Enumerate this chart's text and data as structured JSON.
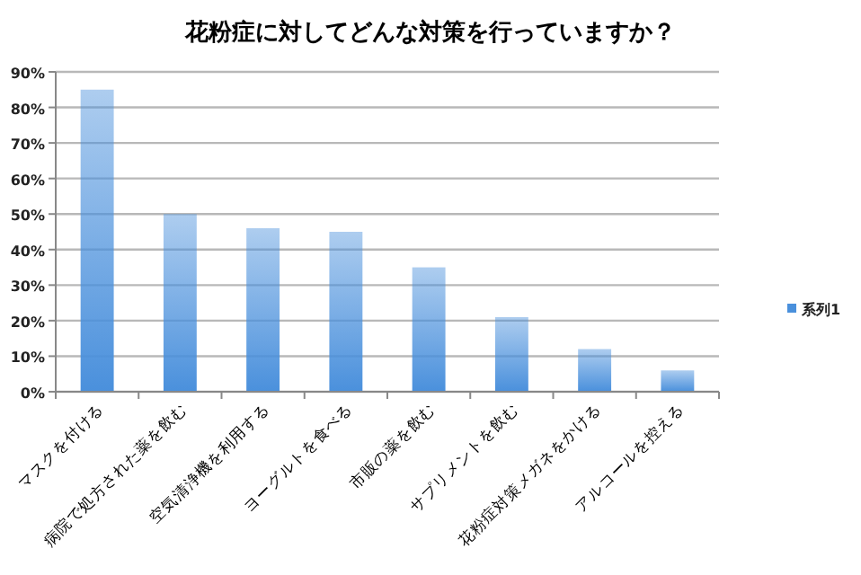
{
  "chart_data": {
    "type": "bar",
    "title": "花粉症に対してどんな対策を行っていますか？",
    "categories": [
      "マスクを付ける",
      "病院で処方された薬を飲む",
      "空気清浄機を利用する",
      "ヨーグルトを食べる",
      "市販の薬を飲む",
      "サプリメントを飲む",
      "花粉症対策メガネをかける",
      "アルコールを控える"
    ],
    "series": [
      {
        "name": "系列1",
        "color": "#4a90dc",
        "values": [
          85,
          50,
          46,
          45,
          35,
          21,
          12,
          6
        ]
      }
    ],
    "ylim": [
      0,
      90
    ],
    "yticks": [
      {
        "value": 0,
        "label": "0%"
      },
      {
        "value": 10,
        "label": "10%"
      },
      {
        "value": 20,
        "label": "20%"
      },
      {
        "value": 30,
        "label": "30%"
      },
      {
        "value": 40,
        "label": "40%"
      },
      {
        "value": 50,
        "label": "50%"
      },
      {
        "value": 60,
        "label": "60%"
      },
      {
        "value": 70,
        "label": "70%"
      },
      {
        "value": 80,
        "label": "80%"
      },
      {
        "value": 90,
        "label": "90%"
      }
    ],
    "grid": "y",
    "legend": "right"
  }
}
